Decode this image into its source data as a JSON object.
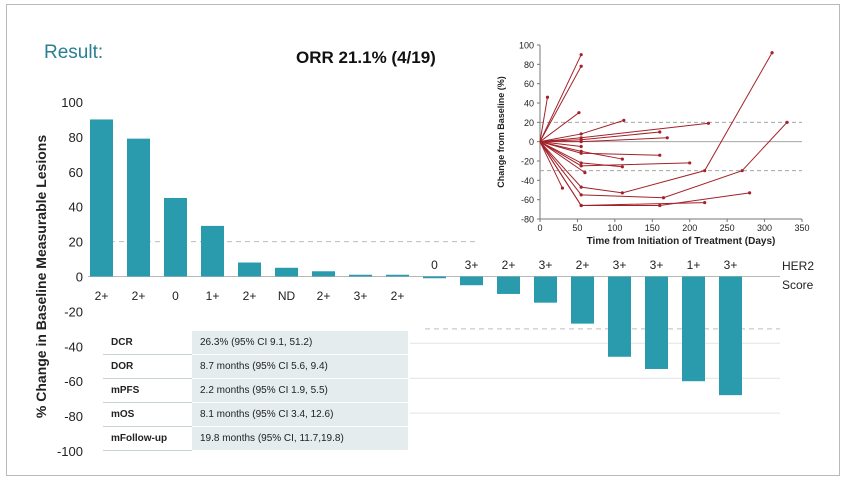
{
  "header": {
    "result_label": "Result:",
    "orr_label": "ORR 21.1% (4/19)"
  },
  "colors": {
    "bar": "#2a9bad",
    "line": "#a3222a",
    "accent_text": "#2b7f92"
  },
  "chart_data": [
    {
      "type": "bar",
      "ylabel": "% Change in Baseline Measurable Lesions",
      "ylim": [
        -100,
        100
      ],
      "yticks": [
        100,
        80,
        60,
        40,
        20,
        0,
        -20,
        -40,
        -60,
        -80,
        -100
      ],
      "reference_lines": [
        20,
        -30
      ],
      "categories": [
        "2+",
        "2+",
        "0",
        "1+",
        "2+",
        "ND",
        "2+",
        "3+",
        "2+",
        "0",
        "3+",
        "2+",
        "3+",
        "2+",
        "3+",
        "3+",
        "1+",
        "3+"
      ],
      "values": [
        90,
        79,
        45,
        29,
        8,
        5,
        3,
        1,
        1,
        -1,
        -5,
        -10,
        -15,
        -27,
        -46,
        -53,
        -60,
        -68
      ],
      "category_axis_title": [
        "HER2",
        "Score"
      ]
    },
    {
      "type": "line",
      "xlabel": "Time from Initiation of Treatment (Days)",
      "ylabel": "Change from Baseline (%)",
      "xlim": [
        0,
        350
      ],
      "ylim": [
        -80,
        100
      ],
      "xticks": [
        0,
        50,
        100,
        150,
        200,
        250,
        300,
        350
      ],
      "yticks": [
        100,
        80,
        60,
        40,
        20,
        0,
        -20,
        -40,
        -60,
        -80
      ],
      "reference_lines": [
        20,
        -30
      ],
      "series": [
        {
          "x": [
            0,
            55
          ],
          "y": [
            0,
            90
          ]
        },
        {
          "x": [
            0,
            55
          ],
          "y": [
            0,
            78
          ]
        },
        {
          "x": [
            0,
            10
          ],
          "y": [
            0,
            46
          ]
        },
        {
          "x": [
            0,
            52
          ],
          "y": [
            0,
            30
          ]
        },
        {
          "x": [
            0,
            55,
            112
          ],
          "y": [
            0,
            8,
            22
          ]
        },
        {
          "x": [
            0,
            55,
            110,
            220,
            310
          ],
          "y": [
            0,
            -47,
            -53,
            -30,
            92
          ]
        },
        {
          "x": [
            0,
            55,
            165,
            270,
            330
          ],
          "y": [
            0,
            -55,
            -58,
            -30,
            20
          ]
        },
        {
          "x": [
            0,
            55,
            160,
            280
          ],
          "y": [
            0,
            -66,
            -66,
            -53
          ]
        },
        {
          "x": [
            0,
            55,
            225
          ],
          "y": [
            0,
            4,
            19
          ]
        },
        {
          "x": [
            0,
            55,
            170
          ],
          "y": [
            0,
            0,
            4
          ]
        },
        {
          "x": [
            0,
            55,
            160
          ],
          "y": [
            0,
            2,
            10
          ]
        },
        {
          "x": [
            0,
            55
          ],
          "y": [
            0,
            -5
          ]
        },
        {
          "x": [
            0,
            55,
            110
          ],
          "y": [
            0,
            -10,
            -18
          ]
        },
        {
          "x": [
            0,
            55,
            160
          ],
          "y": [
            0,
            -12,
            -14
          ]
        },
        {
          "x": [
            0,
            55,
            200
          ],
          "y": [
            0,
            -25,
            -22
          ]
        },
        {
          "x": [
            0,
            55,
            110
          ],
          "y": [
            0,
            -22,
            -26
          ]
        },
        {
          "x": [
            0,
            30
          ],
          "y": [
            0,
            -48
          ]
        },
        {
          "x": [
            0,
            55,
            220
          ],
          "y": [
            0,
            -66,
            -63
          ]
        },
        {
          "x": [
            0,
            60
          ],
          "y": [
            0,
            -32
          ]
        }
      ]
    }
  ],
  "summary_table": [
    {
      "label": "DCR",
      "value": "26.3% (95% CI 9.1, 51.2)"
    },
    {
      "label": "DOR",
      "value": "8.7 months (95% CI 5.6, 9.4)"
    },
    {
      "label": "mPFS",
      "value": "2.2 months (95% CI 1.9, 5.5)"
    },
    {
      "label": "mOS",
      "value": "8.1 months (95% CI 3.4, 12.6)"
    },
    {
      "label": "mFollow-up",
      "value": "19.8 months (95% CI, 11.7,19.8)"
    }
  ]
}
